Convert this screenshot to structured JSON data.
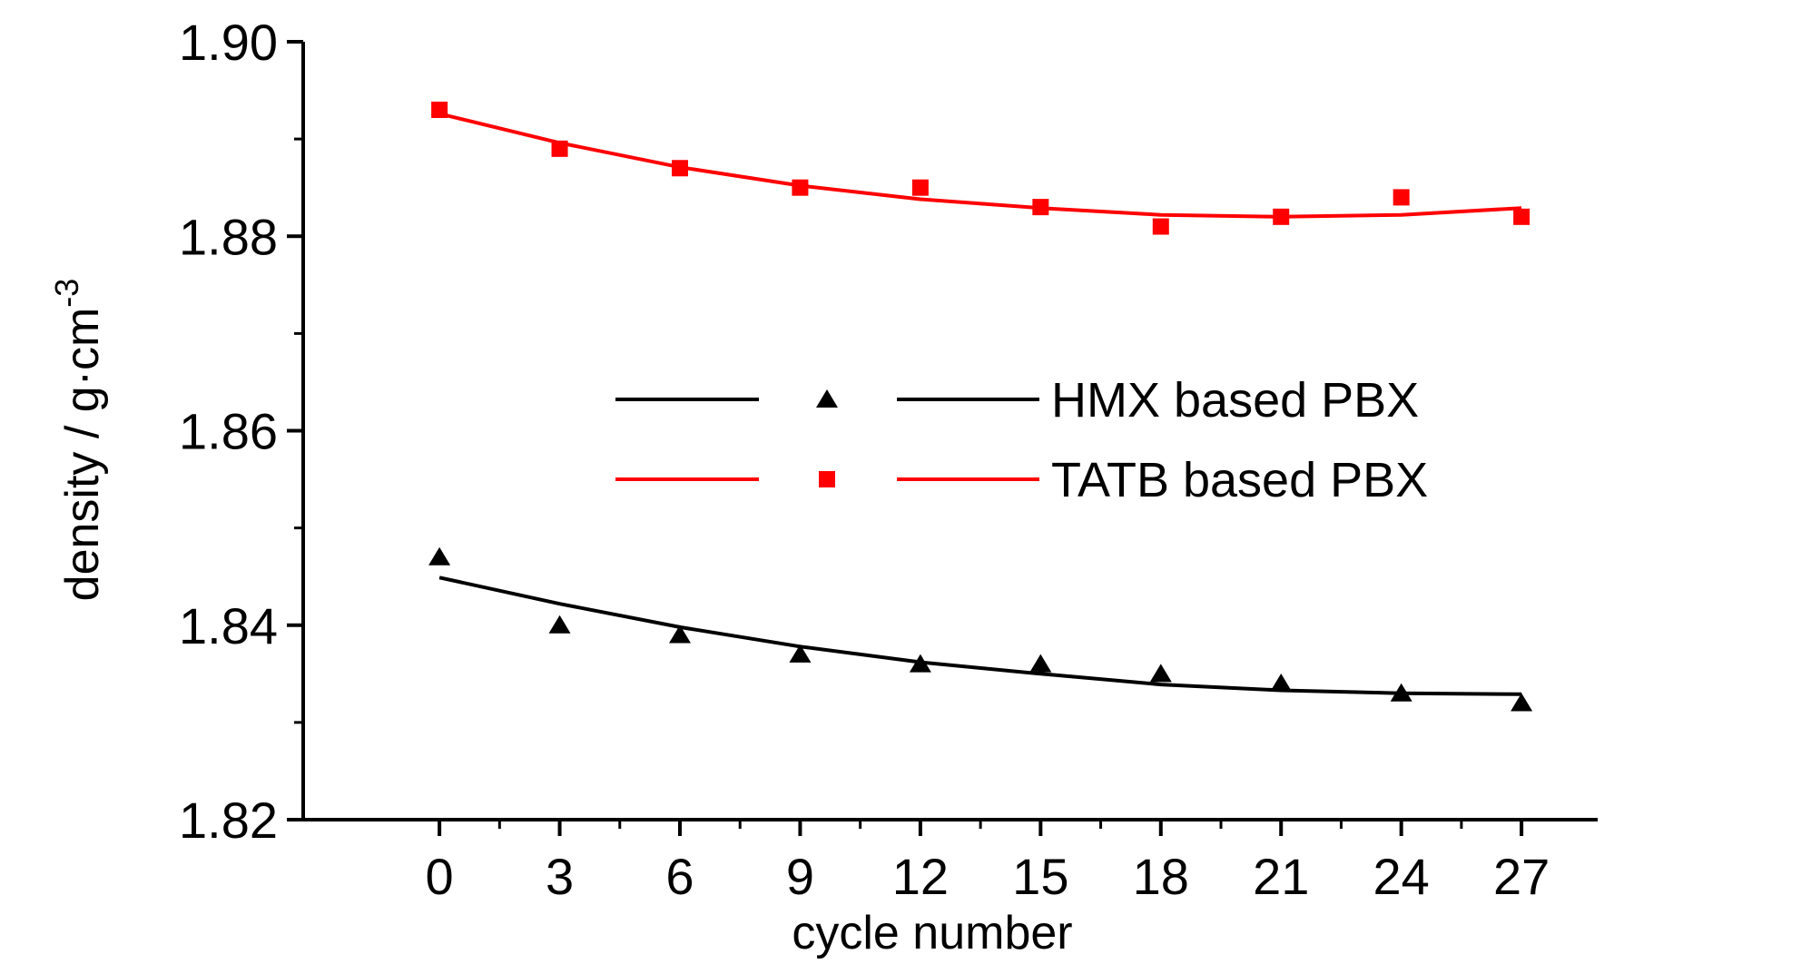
{
  "chart_data": {
    "type": "scatter",
    "xlabel": "cycle number",
    "ylabel": "density / g·cm",
    "ylabel_superscript": "-3",
    "xlim": [
      -3.4,
      28.9
    ],
    "ylim": [
      1.82,
      1.9
    ],
    "x_ticks": [
      0,
      3,
      6,
      9,
      12,
      15,
      18,
      21,
      24,
      27
    ],
    "x_tick_labels": [
      "0",
      "3",
      "6",
      "9",
      "12",
      "15",
      "18",
      "21",
      "24",
      "27"
    ],
    "y_ticks": [
      1.82,
      1.84,
      1.86,
      1.88,
      1.9
    ],
    "y_tick_labels": [
      "1.82",
      "1.84",
      "1.86",
      "1.88",
      "1.90"
    ],
    "grid": false,
    "legend_position": "center-right",
    "series": [
      {
        "name": "HMX based PBX",
        "color": "#000000",
        "marker": "triangle",
        "points": [
          {
            "x": 0,
            "y": 1.847
          },
          {
            "x": 3,
            "y": 1.84
          },
          {
            "x": 6,
            "y": 1.839
          },
          {
            "x": 9,
            "y": 1.837
          },
          {
            "x": 12,
            "y": 1.836
          },
          {
            "x": 15,
            "y": 1.836
          },
          {
            "x": 18,
            "y": 1.835
          },
          {
            "x": 21,
            "y": 1.834
          },
          {
            "x": 24,
            "y": 1.833
          },
          {
            "x": 27,
            "y": 1.832
          }
        ],
        "fit": [
          {
            "x": 0,
            "y": 1.8449
          },
          {
            "x": 3,
            "y": 1.8422
          },
          {
            "x": 6,
            "y": 1.8398
          },
          {
            "x": 9,
            "y": 1.8378
          },
          {
            "x": 12,
            "y": 1.8362
          },
          {
            "x": 15,
            "y": 1.835
          },
          {
            "x": 18,
            "y": 1.8339
          },
          {
            "x": 21,
            "y": 1.8333
          },
          {
            "x": 24,
            "y": 1.833
          },
          {
            "x": 27,
            "y": 1.8329
          }
        ]
      },
      {
        "name": "TATB based PBX",
        "color": "#ff0000",
        "marker": "square",
        "points": [
          {
            "x": 0,
            "y": 1.893
          },
          {
            "x": 3,
            "y": 1.889
          },
          {
            "x": 6,
            "y": 1.887
          },
          {
            "x": 9,
            "y": 1.885
          },
          {
            "x": 12,
            "y": 1.885
          },
          {
            "x": 15,
            "y": 1.883
          },
          {
            "x": 18,
            "y": 1.881
          },
          {
            "x": 21,
            "y": 1.882
          },
          {
            "x": 24,
            "y": 1.884
          },
          {
            "x": 27,
            "y": 1.882
          }
        ],
        "fit": [
          {
            "x": 0,
            "y": 1.8926
          },
          {
            "x": 3,
            "y": 1.8896
          },
          {
            "x": 6,
            "y": 1.8871
          },
          {
            "x": 9,
            "y": 1.8852
          },
          {
            "x": 12,
            "y": 1.8838
          },
          {
            "x": 15,
            "y": 1.8829
          },
          {
            "x": 18,
            "y": 1.8822
          },
          {
            "x": 21,
            "y": 1.882
          },
          {
            "x": 24,
            "y": 1.8822
          },
          {
            "x": 27,
            "y": 1.8829
          }
        ]
      }
    ]
  }
}
